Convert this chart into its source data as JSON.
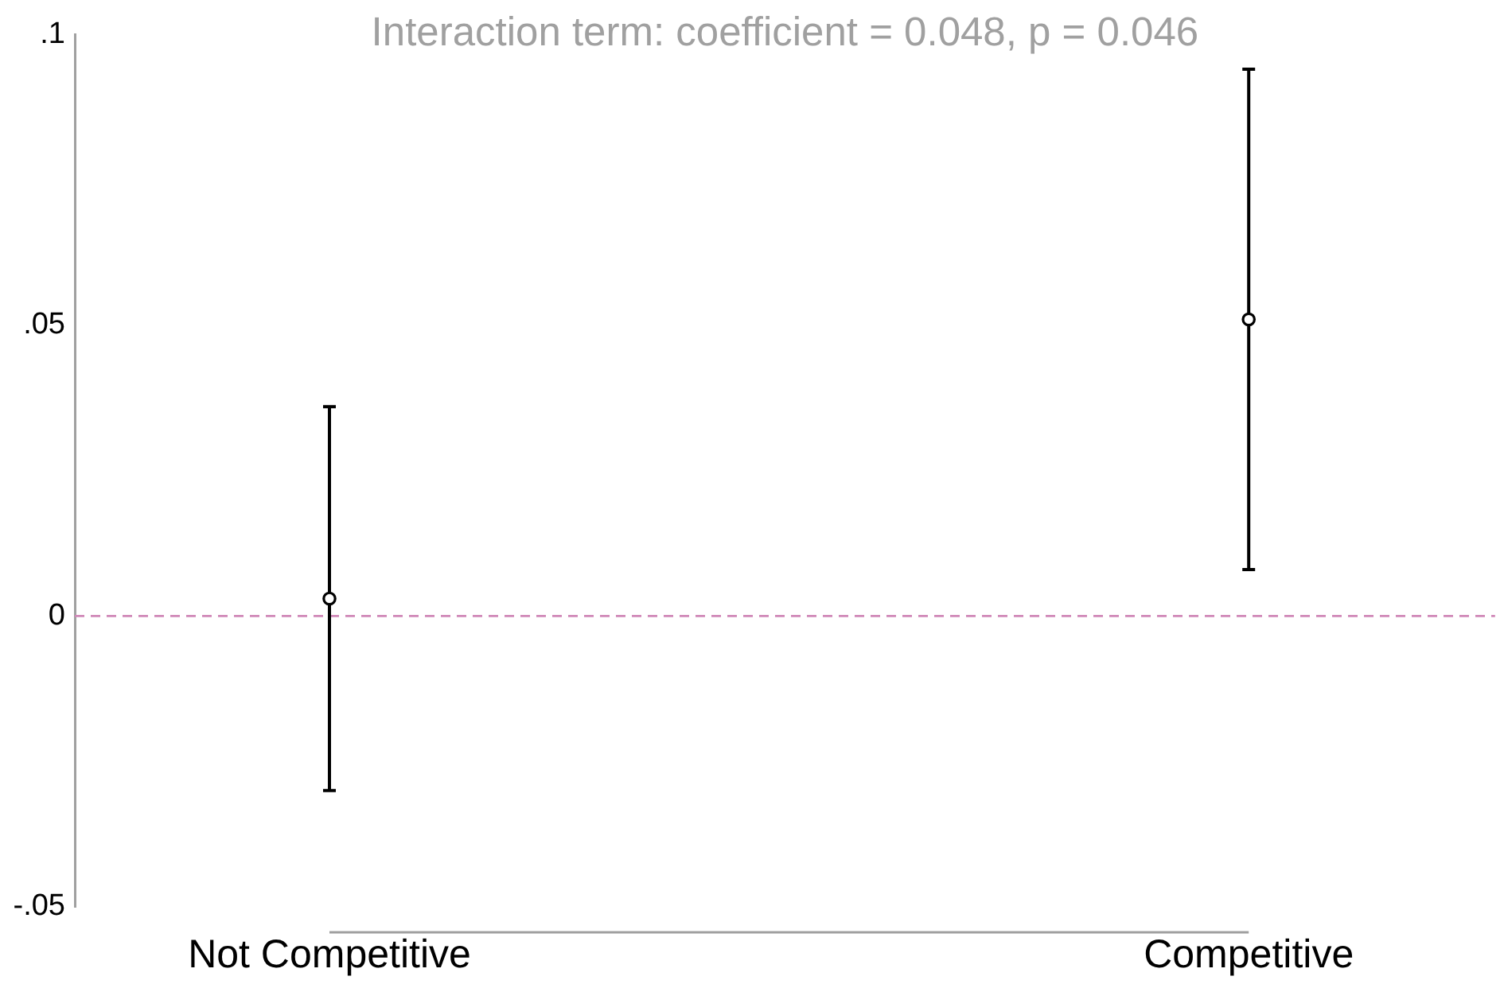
{
  "chart_data": {
    "type": "scatter",
    "title": "Interaction term: coefficient = 0.048, p = 0.046",
    "categories": [
      "Not Competitive",
      "Competitive"
    ],
    "values": [
      0.003,
      0.051
    ],
    "color": "#000000",
    "errors": [
      [
        -0.03,
        0.036
      ],
      [
        0.008,
        0.094
      ]
    ],
    "ylim": [
      -0.05,
      0.1
    ],
    "yticks": [
      {
        "value": -0.05,
        "label": "-.05"
      },
      0,
      {
        "value": 0.05,
        "label": ".05"
      },
      {
        "value": 0.1,
        "label": ".1"
      }
    ],
    "ref_lines": [
      {
        "axis": "y",
        "value": 0,
        "color": "#d088b8",
        "line_style": "dashed"
      }
    ],
    "marker": "circle",
    "grid": false,
    "legend": false
  }
}
